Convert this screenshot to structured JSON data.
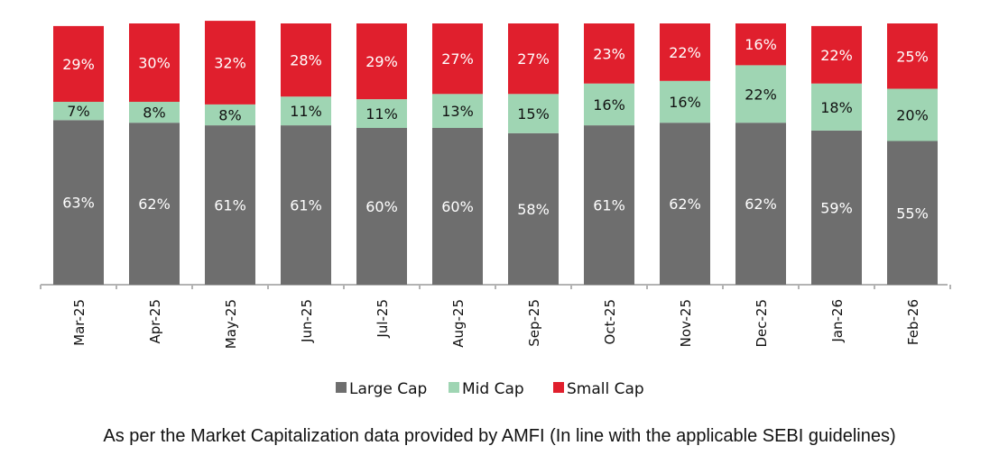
{
  "chart_data": {
    "type": "bar",
    "stacked": true,
    "categories": [
      "Mar-25",
      "Apr-25",
      "May-25",
      "Jun-25",
      "Jul-25",
      "Aug-25",
      "Sep-25",
      "Oct-25",
      "Nov-25",
      "Dec-25",
      "Jan-26",
      "Feb-26"
    ],
    "series": [
      {
        "name": "Large Cap",
        "color": "#6e6e6e",
        "label_color": "#ffffff",
        "values": [
          63,
          62,
          61,
          61,
          60,
          60,
          58,
          61,
          62,
          62,
          59,
          55
        ]
      },
      {
        "name": "Mid Cap",
        "color": "#9fd5b3",
        "label_color": "#111111",
        "values": [
          7,
          8,
          8,
          11,
          11,
          13,
          15,
          16,
          16,
          22,
          18,
          20
        ]
      },
      {
        "name": "Small Cap",
        "color": "#e01f2d",
        "label_color": "#ffffff",
        "values": [
          29,
          30,
          32,
          28,
          29,
          27,
          27,
          23,
          22,
          16,
          22,
          25
        ]
      }
    ],
    "value_suffix": "%",
    "ylim": [
      0,
      100
    ],
    "grid": false,
    "legend": "bottom",
    "caption": "As per the Market Capitalization data provided by AMFI (In line with the applicable SEBI guidelines)"
  }
}
